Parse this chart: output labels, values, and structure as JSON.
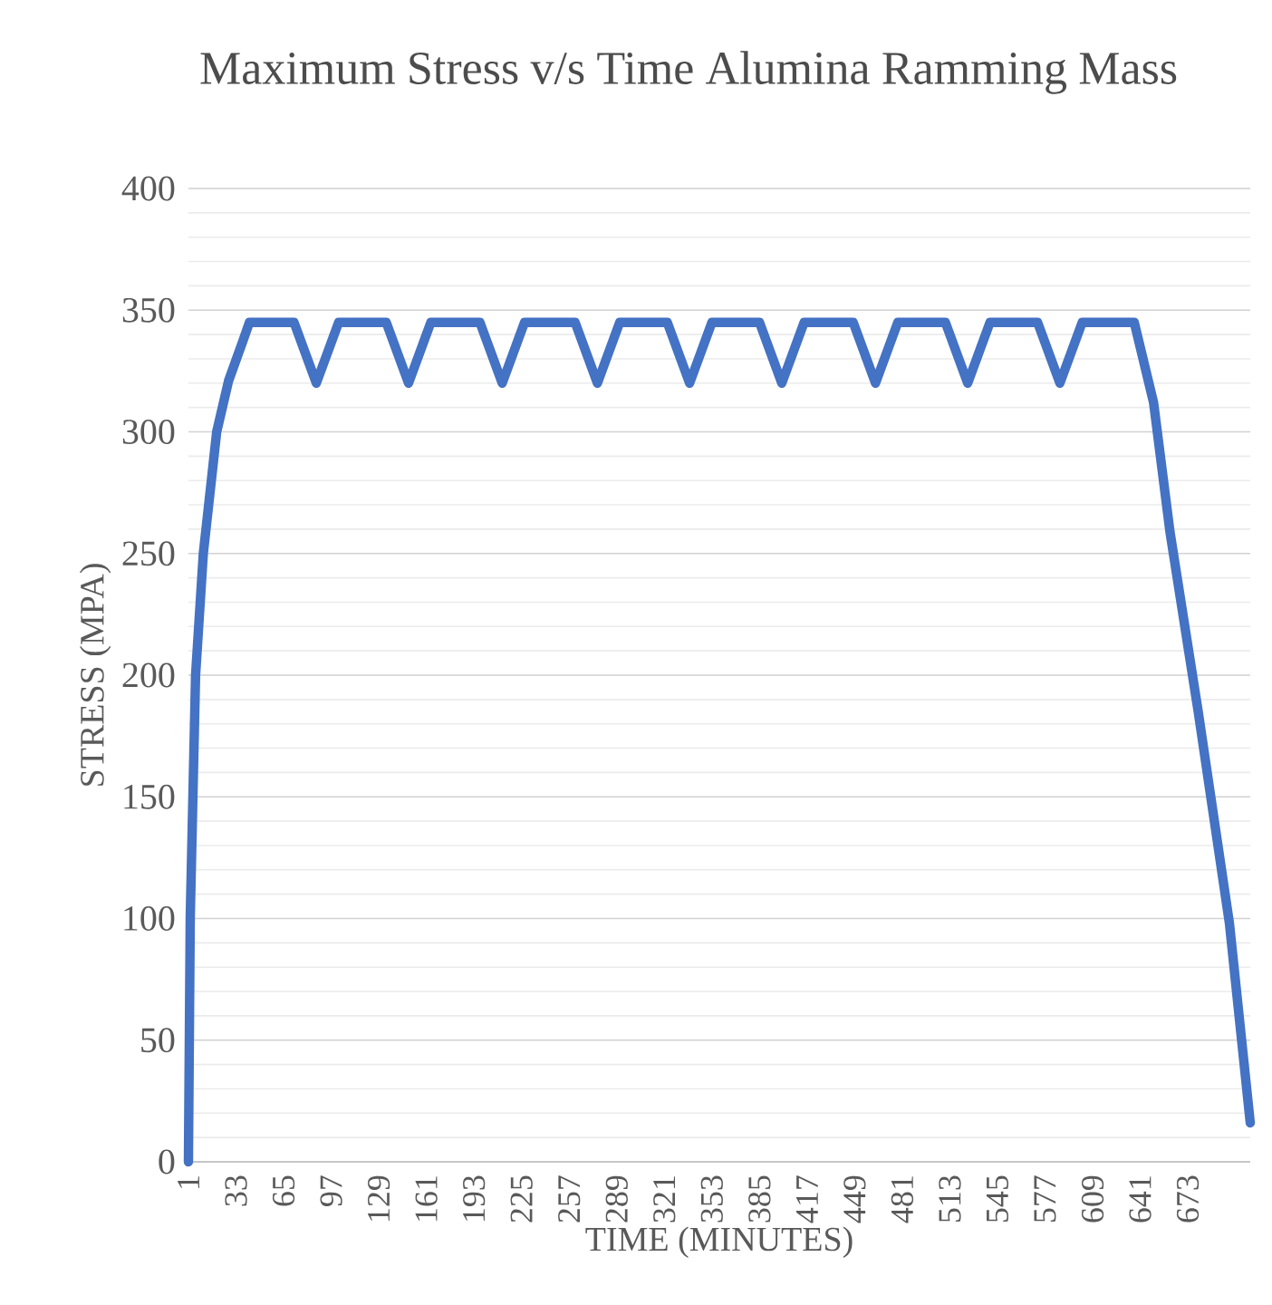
{
  "chart_data": {
    "type": "line",
    "title": "Maximum Stress v/s Time Alumina Ramming Mass",
    "xlabel": "TIME (MINUTES)",
    "ylabel": "STRESS (MPA)",
    "xlim": [
      1,
      715
    ],
    "xticks": [
      1,
      33,
      65,
      97,
      129,
      161,
      193,
      225,
      257,
      289,
      321,
      353,
      385,
      417,
      449,
      481,
      513,
      545,
      577,
      609,
      641,
      673
    ],
    "ylim": [
      0,
      400
    ],
    "yticks": [
      0,
      50,
      100,
      150,
      200,
      250,
      300,
      350,
      400
    ],
    "grid": "y",
    "marker": "none",
    "line_style": "solid",
    "series": [
      {
        "color": "#4472c4",
        "x": [
          1,
          2.2,
          5.8,
          11,
          20,
          28,
          38,
          42,
          72,
          87,
          102,
          134,
          149,
          164,
          197,
          212,
          227,
          261,
          276,
          291,
          323,
          338,
          353,
          385,
          400,
          415,
          448,
          463,
          478,
          510,
          525,
          540,
          572,
          587,
          602,
          637,
          650,
          661,
          680,
          701,
          715
        ],
        "values": [
          0,
          100,
          200,
          250,
          300,
          321,
          338,
          345,
          345,
          320,
          345,
          345,
          320,
          345,
          345,
          320,
          345,
          345,
          320,
          345,
          345,
          320,
          345,
          345,
          320,
          345,
          345,
          320,
          345,
          345,
          320,
          345,
          345,
          320,
          345,
          345,
          312,
          259,
          185,
          98,
          16
        ]
      }
    ]
  }
}
